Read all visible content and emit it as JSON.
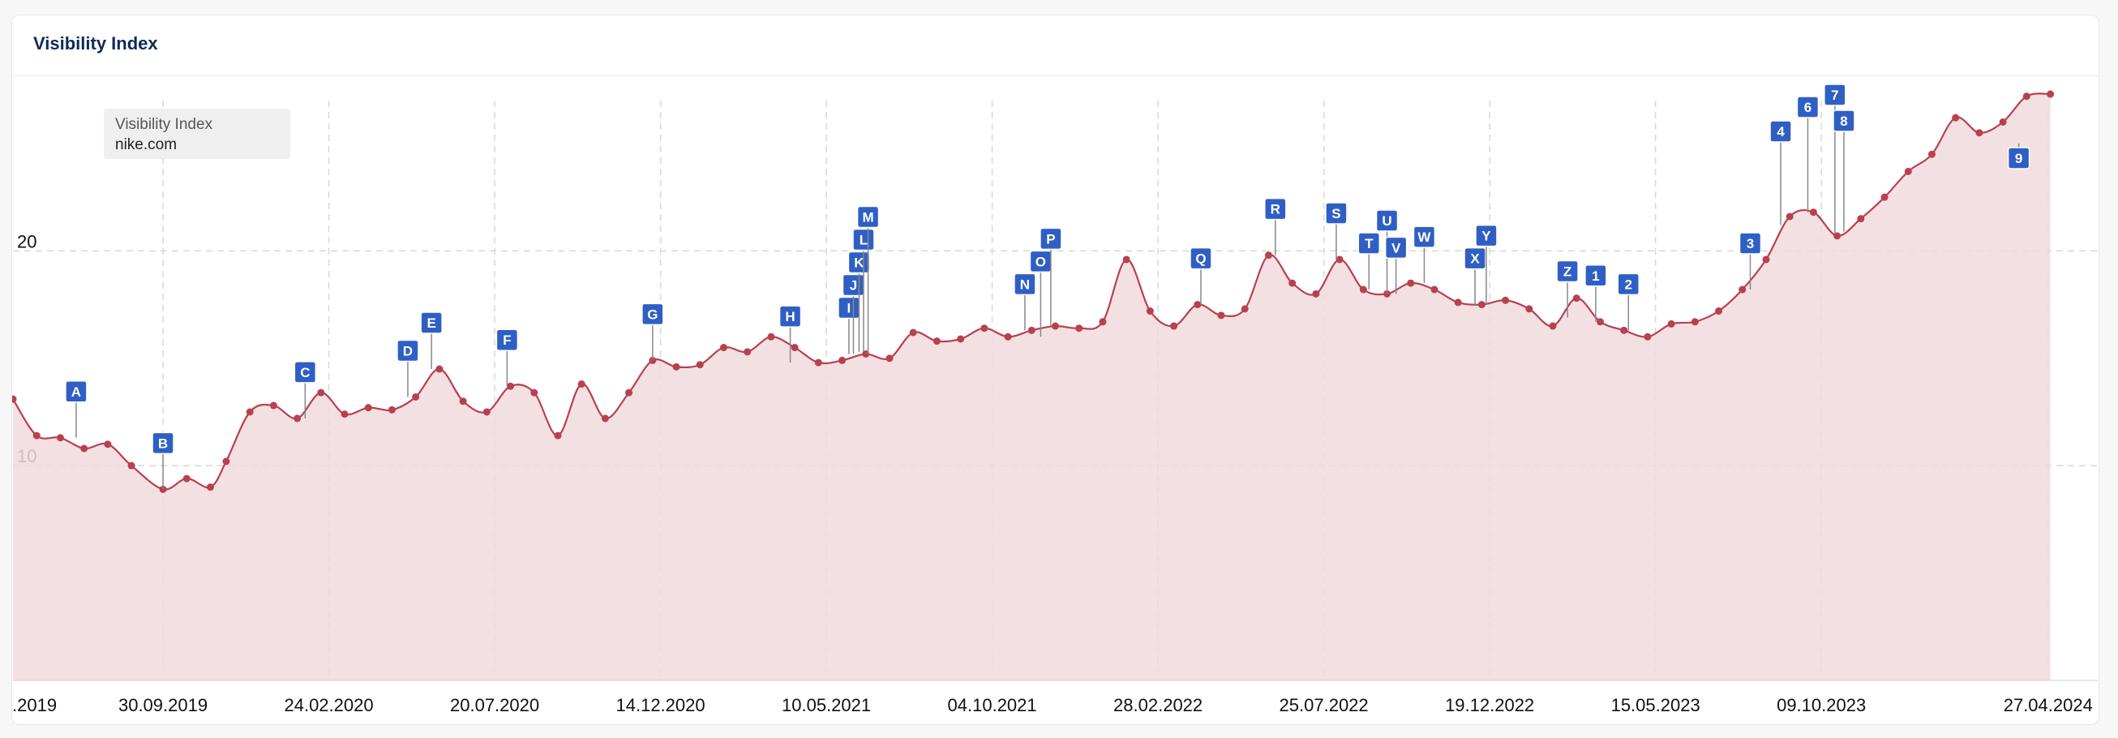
{
  "card": {
    "title": "Visibility Index"
  },
  "legend": {
    "label": "Visibility Index",
    "domain": "nike.com"
  },
  "colors": {
    "line": "#b9404f",
    "area": "#f1dadd",
    "dot": "#b9404f",
    "marker": "#2f5fc4",
    "grid": "#d8d8dc"
  },
  "chart_data": {
    "type": "area",
    "title": "Visibility Index",
    "series_name": "nike.com",
    "ylim": [
      0,
      27
    ],
    "xlim": [
      "2019-05-20",
      "2024-06-10"
    ],
    "y_ticks": [
      10,
      20
    ],
    "x_ticks": [
      {
        "date": "2019-05-13",
        "label": ".2019"
      },
      {
        "date": "2019-09-30",
        "label": "30.09.2019"
      },
      {
        "date": "2020-02-24",
        "label": "24.02.2020"
      },
      {
        "date": "2020-07-20",
        "label": "20.07.2020"
      },
      {
        "date": "2020-12-14",
        "label": "14.12.2020"
      },
      {
        "date": "2021-05-10",
        "label": "10.05.2021"
      },
      {
        "date": "2021-10-04",
        "label": "04.10.2021"
      },
      {
        "date": "2022-02-28",
        "label": "28.02.2022"
      },
      {
        "date": "2022-07-25",
        "label": "25.07.2022"
      },
      {
        "date": "2022-12-19",
        "label": "19.12.2022"
      },
      {
        "date": "2023-05-15",
        "label": "15.05.2023"
      },
      {
        "date": "2023-10-09",
        "label": "09.10.2023"
      },
      {
        "date": "2024-04-27",
        "label": "27.04.2024"
      }
    ],
    "grid": true,
    "legend": "top-left",
    "points": [
      [
        "2019-05-20",
        13.1
      ],
      [
        "2019-06-10",
        11.4
      ],
      [
        "2019-07-01",
        11.3
      ],
      [
        "2019-07-22",
        10.8
      ],
      [
        "2019-08-12",
        11.0
      ],
      [
        "2019-09-02",
        10.0
      ],
      [
        "2019-09-30",
        8.9
      ],
      [
        "2019-10-21",
        9.4
      ],
      [
        "2019-11-11",
        9.0
      ],
      [
        "2019-11-25",
        10.2
      ],
      [
        "2019-12-16",
        12.5
      ],
      [
        "2020-01-06",
        12.8
      ],
      [
        "2020-01-27",
        12.2
      ],
      [
        "2020-02-17",
        13.4
      ],
      [
        "2020-03-09",
        12.4
      ],
      [
        "2020-03-30",
        12.7
      ],
      [
        "2020-04-20",
        12.6
      ],
      [
        "2020-05-11",
        13.2
      ],
      [
        "2020-06-01",
        14.5
      ],
      [
        "2020-06-22",
        13.0
      ],
      [
        "2020-07-13",
        12.5
      ],
      [
        "2020-08-03",
        13.7
      ],
      [
        "2020-08-24",
        13.4
      ],
      [
        "2020-09-14",
        11.4
      ],
      [
        "2020-10-05",
        13.8
      ],
      [
        "2020-10-26",
        12.2
      ],
      [
        "2020-11-16",
        13.4
      ],
      [
        "2020-12-07",
        14.9
      ],
      [
        "2020-12-28",
        14.6
      ],
      [
        "2021-01-18",
        14.7
      ],
      [
        "2021-02-08",
        15.5
      ],
      [
        "2021-03-01",
        15.3
      ],
      [
        "2021-03-22",
        16.0
      ],
      [
        "2021-04-12",
        15.5
      ],
      [
        "2021-05-03",
        14.8
      ],
      [
        "2021-05-24",
        14.9
      ],
      [
        "2021-06-14",
        15.2
      ],
      [
        "2021-07-05",
        15.0
      ],
      [
        "2021-07-26",
        16.2
      ],
      [
        "2021-08-16",
        15.8
      ],
      [
        "2021-09-06",
        15.9
      ],
      [
        "2021-09-27",
        16.4
      ],
      [
        "2021-10-18",
        16.0
      ],
      [
        "2021-11-08",
        16.3
      ],
      [
        "2021-11-29",
        16.5
      ],
      [
        "2021-12-20",
        16.4
      ],
      [
        "2022-01-10",
        16.7
      ],
      [
        "2022-01-31",
        19.6
      ],
      [
        "2022-02-21",
        17.2
      ],
      [
        "2022-03-14",
        16.5
      ],
      [
        "2022-04-04",
        17.5
      ],
      [
        "2022-04-25",
        17.0
      ],
      [
        "2022-05-16",
        17.3
      ],
      [
        "2022-06-06",
        19.8
      ],
      [
        "2022-06-27",
        18.5
      ],
      [
        "2022-07-18",
        18.0
      ],
      [
        "2022-08-08",
        19.6
      ],
      [
        "2022-08-29",
        18.2
      ],
      [
        "2022-09-19",
        18.0
      ],
      [
        "2022-10-10",
        18.5
      ],
      [
        "2022-10-31",
        18.2
      ],
      [
        "2022-11-21",
        17.6
      ],
      [
        "2022-12-12",
        17.5
      ],
      [
        "2023-01-02",
        17.7
      ],
      [
        "2023-01-23",
        17.3
      ],
      [
        "2023-02-13",
        16.5
      ],
      [
        "2023-03-06",
        17.8
      ],
      [
        "2023-03-27",
        16.7
      ],
      [
        "2023-04-17",
        16.3
      ],
      [
        "2023-05-08",
        16.0
      ],
      [
        "2023-05-29",
        16.6
      ],
      [
        "2023-06-19",
        16.7
      ],
      [
        "2023-07-10",
        17.2
      ],
      [
        "2023-07-31",
        18.2
      ],
      [
        "2023-08-21",
        19.6
      ],
      [
        "2023-09-11",
        21.6
      ],
      [
        "2023-10-02",
        21.8
      ],
      [
        "2023-10-23",
        20.7
      ],
      [
        "2023-11-13",
        21.5
      ],
      [
        "2023-12-04",
        22.5
      ],
      [
        "2023-12-25",
        23.7
      ],
      [
        "2024-01-15",
        24.5
      ],
      [
        "2024-02-05",
        26.2
      ],
      [
        "2024-02-26",
        25.5
      ],
      [
        "2024-03-18",
        26.0
      ],
      [
        "2024-04-08",
        27.2
      ],
      [
        "2024-04-29",
        27.3
      ]
    ],
    "markers": [
      {
        "label": "A",
        "date": "2019-07-15",
        "y": 11.3
      },
      {
        "label": "B",
        "date": "2019-09-30",
        "y": 8.9
      },
      {
        "label": "C",
        "date": "2020-02-03",
        "y": 12.2
      },
      {
        "label": "D",
        "date": "2020-05-04",
        "y": 13.2
      },
      {
        "label": "E",
        "date": "2020-05-25",
        "y": 14.5
      },
      {
        "label": "F",
        "date": "2020-07-31",
        "y": 13.7
      },
      {
        "label": "G",
        "date": "2020-12-07",
        "y": 14.9
      },
      {
        "label": "H",
        "date": "2021-04-08",
        "y": 14.8
      },
      {
        "label": "I",
        "date": "2021-05-30",
        "y": 15.2
      },
      {
        "label": "J",
        "date": "2021-06-03",
        "y": 15.2
      },
      {
        "label": "K",
        "date": "2021-06-08",
        "y": 15.3
      },
      {
        "label": "L",
        "date": "2021-06-12",
        "y": 15.3
      },
      {
        "label": "M",
        "date": "2021-06-16",
        "y": 15.2
      },
      {
        "label": "N",
        "date": "2021-11-02",
        "y": 16.3
      },
      {
        "label": "O",
        "date": "2021-11-16",
        "y": 16.0
      },
      {
        "label": "P",
        "date": "2021-11-25",
        "y": 16.5
      },
      {
        "label": "Q",
        "date": "2022-04-07",
        "y": 17.5
      },
      {
        "label": "R",
        "date": "2022-06-12",
        "y": 19.8
      },
      {
        "label": "S",
        "date": "2022-08-05",
        "y": 19.6
      },
      {
        "label": "T",
        "date": "2022-09-03",
        "y": 18.2
      },
      {
        "label": "U",
        "date": "2022-09-19",
        "y": 18.0
      },
      {
        "label": "V",
        "date": "2022-09-27",
        "y": 18.0
      },
      {
        "label": "W",
        "date": "2022-10-22",
        "y": 18.5
      },
      {
        "label": "X",
        "date": "2022-12-06",
        "y": 17.5
      },
      {
        "label": "Y",
        "date": "2022-12-16",
        "y": 17.5
      },
      {
        "label": "Z",
        "date": "2023-02-26",
        "y": 16.9
      },
      {
        "label": "1",
        "date": "2023-03-23",
        "y": 16.7
      },
      {
        "label": "2",
        "date": "2023-04-21",
        "y": 16.3
      },
      {
        "label": "3",
        "date": "2023-08-07",
        "y": 18.2
      },
      {
        "label": "4",
        "date": "2023-09-03",
        "y": 21.2
      },
      {
        "label": "6",
        "date": "2023-09-27",
        "y": 21.8
      },
      {
        "label": "7",
        "date": "2023-10-21",
        "y": 20.8
      },
      {
        "label": "8",
        "date": "2023-10-29",
        "y": 20.9
      },
      {
        "label": "9",
        "date": "2024-04-01",
        "y": 25.0
      }
    ]
  }
}
